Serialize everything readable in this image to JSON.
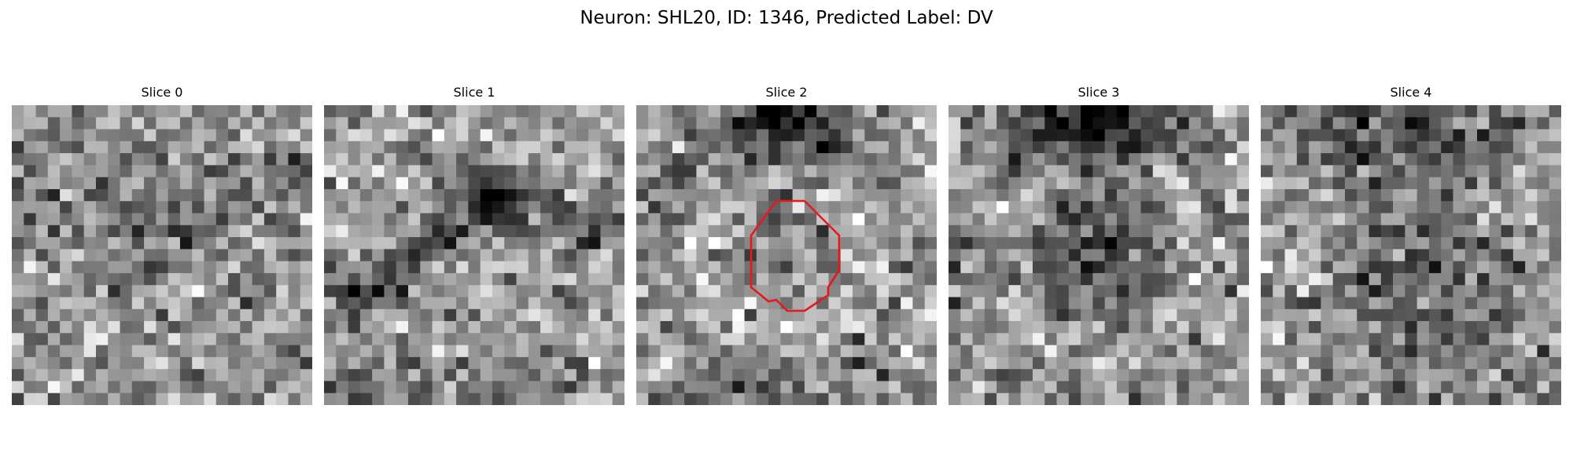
{
  "figure": {
    "suptitle": "Neuron: SHL20, ID: 1346, Predicted Label: DV"
  },
  "slices": [
    {
      "title": "Slice 0"
    },
    {
      "title": "Slice 1"
    },
    {
      "title": "Slice 2",
      "has_contour": true
    },
    {
      "title": "Slice 3"
    },
    {
      "title": "Slice 4"
    }
  ],
  "colors": {
    "contour": "#e8171c",
    "background": "#ffffff"
  }
}
